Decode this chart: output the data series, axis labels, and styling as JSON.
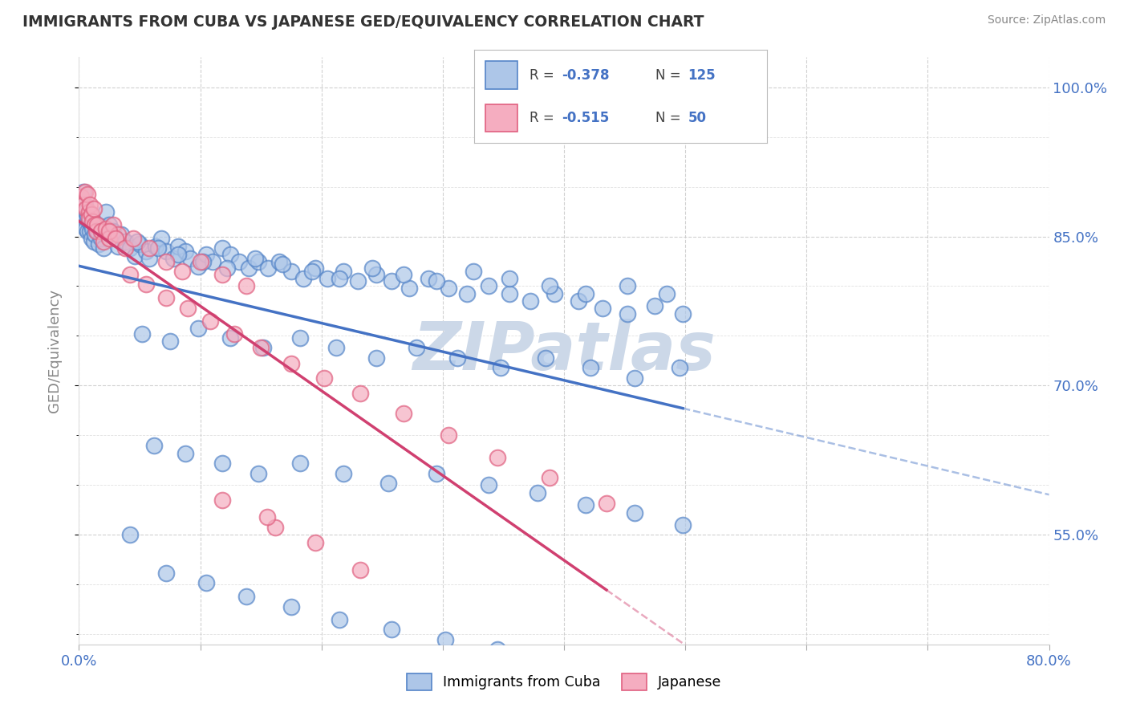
{
  "title": "IMMIGRANTS FROM CUBA VS JAPANESE GED/EQUIVALENCY CORRELATION CHART",
  "source_text": "Source: ZipAtlas.com",
  "ylabel": "GED/Equivalency",
  "xlim": [
    0.0,
    0.8
  ],
  "ylim": [
    0.44,
    1.03
  ],
  "ytick_labels": [
    "55.0%",
    "70.0%",
    "85.0%",
    "100.0%"
  ],
  "ytick_vals": [
    0.55,
    0.7,
    0.85,
    1.0
  ],
  "cuba_R": -0.378,
  "cuba_N": 125,
  "japan_R": -0.515,
  "japan_N": 50,
  "cuba_color": "#adc6e8",
  "japan_color": "#f5adc0",
  "cuba_edge_color": "#5585c8",
  "japan_edge_color": "#e06080",
  "cuba_line_color": "#4472c4",
  "japan_line_color": "#d04070",
  "watermark": "ZIPatlas",
  "watermark_color": "#ccd8e8",
  "background_color": "#ffffff",
  "grid_color": "#cccccc",
  "title_color": "#333333",
  "axis_label_color": "#4472c4",
  "cuba_x": [
    0.002,
    0.003,
    0.004,
    0.005,
    0.005,
    0.006,
    0.006,
    0.007,
    0.007,
    0.008,
    0.009,
    0.01,
    0.01,
    0.011,
    0.012,
    0.013,
    0.015,
    0.016,
    0.018,
    0.02,
    0.022,
    0.025,
    0.028,
    0.03,
    0.032,
    0.035,
    0.038,
    0.042,
    0.046,
    0.05,
    0.055,
    0.058,
    0.063,
    0.068,
    0.072,
    0.078,
    0.082,
    0.088,
    0.092,
    0.098,
    0.105,
    0.11,
    0.118,
    0.125,
    0.132,
    0.14,
    0.148,
    0.156,
    0.165,
    0.175,
    0.185,
    0.195,
    0.205,
    0.218,
    0.23,
    0.245,
    0.258,
    0.272,
    0.288,
    0.305,
    0.32,
    0.338,
    0.355,
    0.372,
    0.392,
    0.412,
    0.432,
    0.452,
    0.475,
    0.498,
    0.048,
    0.065,
    0.082,
    0.102,
    0.122,
    0.145,
    0.168,
    0.192,
    0.215,
    0.242,
    0.268,
    0.295,
    0.325,
    0.355,
    0.388,
    0.418,
    0.452,
    0.485,
    0.052,
    0.075,
    0.098,
    0.125,
    0.152,
    0.182,
    0.212,
    0.245,
    0.278,
    0.312,
    0.348,
    0.385,
    0.422,
    0.458,
    0.495,
    0.062,
    0.088,
    0.118,
    0.148,
    0.182,
    0.218,
    0.255,
    0.295,
    0.338,
    0.378,
    0.418,
    0.458,
    0.498,
    0.042,
    0.072,
    0.105,
    0.138,
    0.175,
    0.215,
    0.258,
    0.302,
    0.345
  ],
  "cuba_y": [
    0.875,
    0.88,
    0.895,
    0.882,
    0.868,
    0.875,
    0.858,
    0.87,
    0.855,
    0.865,
    0.855,
    0.862,
    0.848,
    0.858,
    0.845,
    0.852,
    0.855,
    0.842,
    0.848,
    0.838,
    0.875,
    0.862,
    0.855,
    0.848,
    0.84,
    0.852,
    0.845,
    0.838,
    0.83,
    0.842,
    0.835,
    0.828,
    0.84,
    0.848,
    0.835,
    0.828,
    0.84,
    0.835,
    0.828,
    0.82,
    0.832,
    0.825,
    0.838,
    0.832,
    0.825,
    0.818,
    0.825,
    0.818,
    0.825,
    0.815,
    0.808,
    0.818,
    0.808,
    0.815,
    0.805,
    0.812,
    0.805,
    0.798,
    0.808,
    0.798,
    0.792,
    0.8,
    0.792,
    0.785,
    0.792,
    0.785,
    0.778,
    0.772,
    0.78,
    0.772,
    0.845,
    0.838,
    0.832,
    0.825,
    0.818,
    0.828,
    0.822,
    0.815,
    0.808,
    0.818,
    0.812,
    0.805,
    0.815,
    0.808,
    0.8,
    0.792,
    0.8,
    0.792,
    0.752,
    0.745,
    0.758,
    0.748,
    0.738,
    0.748,
    0.738,
    0.728,
    0.738,
    0.728,
    0.718,
    0.728,
    0.718,
    0.708,
    0.718,
    0.64,
    0.632,
    0.622,
    0.612,
    0.622,
    0.612,
    0.602,
    0.612,
    0.6,
    0.592,
    0.58,
    0.572,
    0.56,
    0.55,
    0.512,
    0.502,
    0.488,
    0.478,
    0.465,
    0.455,
    0.445,
    0.435
  ],
  "japan_x": [
    0.002,
    0.004,
    0.005,
    0.006,
    0.007,
    0.008,
    0.008,
    0.009,
    0.01,
    0.011,
    0.012,
    0.013,
    0.014,
    0.015,
    0.018,
    0.02,
    0.022,
    0.025,
    0.028,
    0.032,
    0.025,
    0.03,
    0.038,
    0.045,
    0.058,
    0.072,
    0.085,
    0.1,
    0.118,
    0.138,
    0.042,
    0.055,
    0.072,
    0.09,
    0.108,
    0.128,
    0.15,
    0.175,
    0.202,
    0.232,
    0.268,
    0.305,
    0.345,
    0.388,
    0.435,
    0.162,
    0.195,
    0.232,
    0.155,
    0.118
  ],
  "japan_y": [
    0.89,
    0.882,
    0.895,
    0.878,
    0.892,
    0.875,
    0.868,
    0.882,
    0.872,
    0.865,
    0.878,
    0.862,
    0.855,
    0.862,
    0.855,
    0.845,
    0.858,
    0.848,
    0.862,
    0.852,
    0.855,
    0.848,
    0.838,
    0.848,
    0.838,
    0.825,
    0.815,
    0.825,
    0.812,
    0.8,
    0.812,
    0.802,
    0.788,
    0.778,
    0.765,
    0.752,
    0.738,
    0.722,
    0.708,
    0.692,
    0.672,
    0.65,
    0.628,
    0.608,
    0.582,
    0.558,
    0.542,
    0.515,
    0.568,
    0.585
  ]
}
